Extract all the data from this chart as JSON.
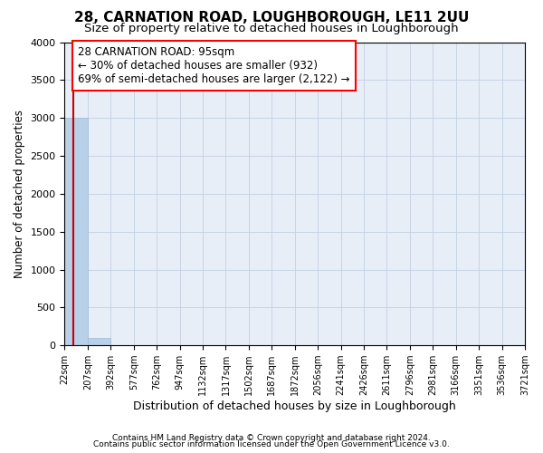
{
  "title": "28, CARNATION ROAD, LOUGHBOROUGH, LE11 2UU",
  "subtitle": "Size of property relative to detached houses in Loughborough",
  "xlabel": "Distribution of detached houses by size in Loughborough",
  "ylabel": "Number of detached properties",
  "footnote1": "Contains HM Land Registry data © Crown copyright and database right 2024.",
  "footnote2": "Contains public sector information licensed under the Open Government Licence v3.0.",
  "bar_edges": [
    22,
    207,
    392,
    577,
    762,
    947,
    1132,
    1317,
    1502,
    1687,
    1872,
    2056,
    2241,
    2426,
    2611,
    2796,
    2981,
    3166,
    3351,
    3536,
    3721
  ],
  "bar_heights": [
    3000,
    100,
    0,
    0,
    0,
    0,
    0,
    0,
    0,
    0,
    0,
    0,
    0,
    0,
    0,
    0,
    0,
    0,
    0,
    0
  ],
  "bar_color": "#b8d0e8",
  "bar_edgecolor": "#a0bcd8",
  "property_size": 95,
  "annotation_text": "28 CARNATION ROAD: 95sqm\n← 30% of detached houses are smaller (932)\n69% of semi-detached houses are larger (2,122) →",
  "vline_color": "#cc0000",
  "ylim": [
    0,
    4000
  ],
  "xlim": [
    22,
    3721
  ],
  "tick_labels": [
    "22sqm",
    "207sqm",
    "392sqm",
    "577sqm",
    "762sqm",
    "947sqm",
    "1132sqm",
    "1317sqm",
    "1502sqm",
    "1687sqm",
    "1872sqm",
    "2056sqm",
    "2241sqm",
    "2426sqm",
    "2611sqm",
    "2796sqm",
    "2981sqm",
    "3166sqm",
    "3351sqm",
    "3536sqm",
    "3721sqm"
  ],
  "grid_color": "#c8d4e4",
  "bg_color": "#e8eef8",
  "title_fontsize": 11,
  "subtitle_fontsize": 9.5,
  "xlabel_fontsize": 9,
  "ylabel_fontsize": 8.5,
  "tick_fontsize": 7,
  "annotation_fontsize": 8.5
}
